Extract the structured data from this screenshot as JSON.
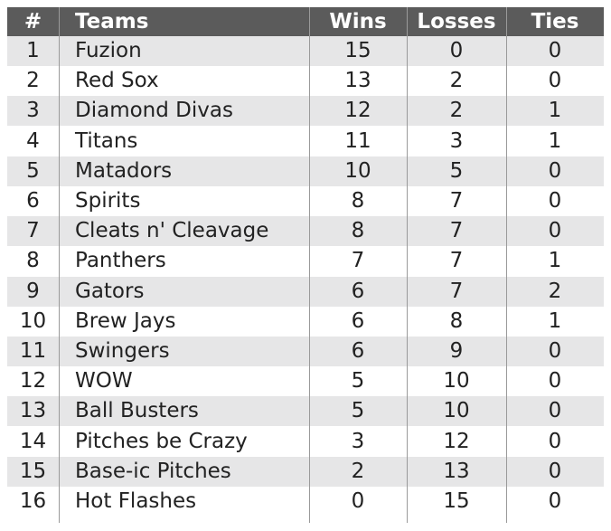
{
  "table": {
    "header": [
      "#",
      "Teams",
      "Wins",
      "Losses",
      "Ties"
    ],
    "rows": [
      [
        1,
        "Fuzion",
        15,
        0,
        0
      ],
      [
        2,
        "Red Sox",
        13,
        2,
        0
      ],
      [
        3,
        "Diamond Divas",
        12,
        2,
        1
      ],
      [
        4,
        "Titans",
        11,
        3,
        1
      ],
      [
        5,
        "Matadors",
        10,
        5,
        0
      ],
      [
        6,
        "Spirits",
        8,
        7,
        0
      ],
      [
        7,
        "Cleats n' Cleavage",
        8,
        7,
        0
      ],
      [
        8,
        "Panthers",
        7,
        7,
        1
      ],
      [
        9,
        "Gators",
        6,
        7,
        2
      ],
      [
        10,
        "Brew Jays",
        6,
        8,
        1
      ],
      [
        11,
        "Swingers",
        6,
        9,
        0
      ],
      [
        12,
        "WOW",
        5,
        10,
        0
      ],
      [
        13,
        "Ball Busters",
        5,
        10,
        0
      ],
      [
        14,
        "Pitches be Crazy",
        3,
        12,
        0
      ],
      [
        15,
        "Base-ic Pitches",
        2,
        13,
        0
      ],
      [
        16,
        "Hot Flashes",
        0,
        15,
        0
      ]
    ]
  }
}
